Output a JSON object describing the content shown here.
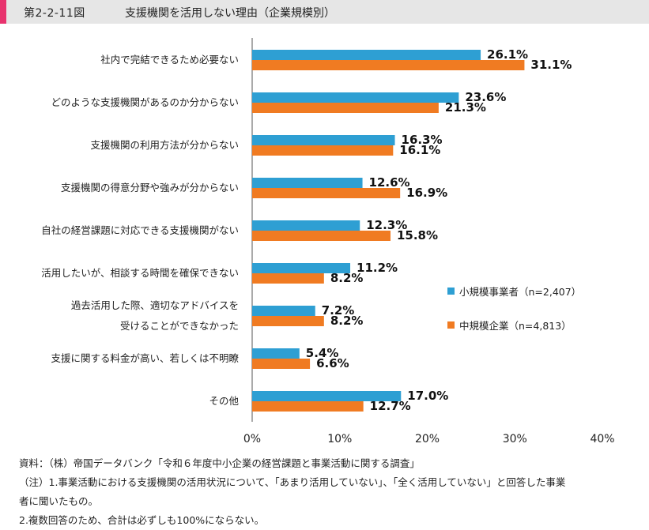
{
  "header": {
    "figure_no": "第2-2-11図",
    "title": "支援機関を活用しない理由（企業規模別）"
  },
  "legend": [
    {
      "label": "小規模事業者（n=2,407）",
      "color": "#2e9fd3"
    },
    {
      "label": "中規模企業（n=4,813）",
      "color": "#f07b22"
    }
  ],
  "notes": [
    "資料：（株）帝国データバンク「令和６年度中小企業の経営課題と事業活動に関する調査」",
    "（注）1.事業活動における支援機関の活用状況について、「あまり活用していない」、「全く活用していない」と回答した事業",
    "者に聞いたもの。",
    "2.複数回答のため、合計は必ずしも100%にならない。"
  ],
  "chart_data": {
    "type": "bar",
    "orientation": "horizontal",
    "categories": [
      [
        "社内で完結できるため必要ない"
      ],
      [
        "どのような支援機関があるのか分からない"
      ],
      [
        "支援機関の利用方法が分からない"
      ],
      [
        "支援機関の得意分野や強みが分からない"
      ],
      [
        "自社の経営課題に対応できる支援機関がない"
      ],
      [
        "活用したいが、相談する時間を確保できない"
      ],
      [
        "過去活用した際、適切なアドバイスを",
        "受けることができなかった"
      ],
      [
        "支援に関する料金が高い、若しくは不明瞭"
      ],
      [
        "その他"
      ]
    ],
    "series": [
      {
        "name": "小規模事業者（n=2,407）",
        "color": "#2e9fd3",
        "values": [
          26.1,
          23.6,
          16.3,
          12.6,
          12.3,
          11.2,
          7.2,
          5.4,
          17.0
        ],
        "labels": [
          "26.1%",
          "23.6%",
          "16.3%",
          "12.6%",
          "12.3%",
          "11.2%",
          "7.2%",
          "5.4%",
          "17.0%"
        ]
      },
      {
        "name": "中規模企業（n=4,813）",
        "color": "#f07b22",
        "values": [
          31.1,
          21.3,
          16.1,
          16.9,
          15.8,
          8.2,
          8.2,
          6.6,
          12.7
        ],
        "labels": [
          "31.1%",
          "21.3%",
          "16.1%",
          "16.9%",
          "15.8%",
          "8.2%",
          "8.2%",
          "6.6%",
          "12.7%"
        ]
      }
    ],
    "xlim": [
      0,
      40
    ],
    "xticks": [
      "0%",
      "10%",
      "20%",
      "30%",
      "40%"
    ],
    "grid": false
  }
}
